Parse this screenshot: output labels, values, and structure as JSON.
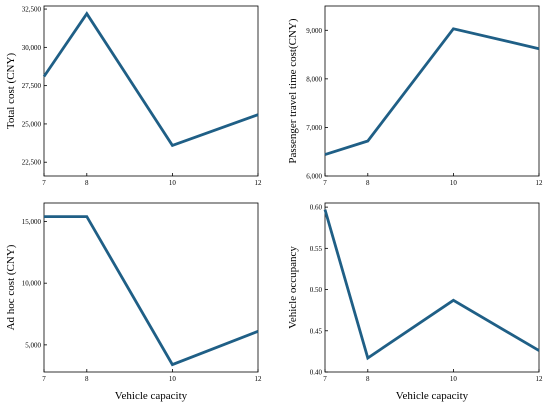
{
  "figure": {
    "line_color": "#1f5f86"
  },
  "chart_data": [
    {
      "type": "line",
      "x": [
        7,
        8,
        10,
        12
      ],
      "y": [
        28100,
        32200,
        23600,
        25600
      ],
      "xlabel": "",
      "ylabel": "Total cost (CNY)",
      "xlim": [
        7,
        12
      ],
      "ylim": [
        21600,
        32700
      ],
      "xticks": [
        7,
        8,
        10,
        12
      ],
      "yticks": [
        22500,
        25000,
        27500,
        30000,
        32500
      ],
      "ytick_labels": [
        "22,500",
        "25,000",
        "27,500",
        "30,000",
        "32,500"
      ],
      "grid": false
    },
    {
      "type": "line",
      "x": [
        7,
        8,
        10,
        12
      ],
      "y": [
        6440,
        6720,
        9030,
        8620
      ],
      "xlabel": "",
      "ylabel": "Passenger travel time cost(CNY)",
      "xlim": [
        7,
        12
      ],
      "ylim": [
        6000,
        9500
      ],
      "xticks": [
        7,
        8,
        10,
        12
      ],
      "yticks": [
        6000,
        7000,
        8000,
        9000
      ],
      "ytick_labels": [
        "6,000",
        "7,000",
        "8,000",
        "9,000"
      ],
      "grid": false
    },
    {
      "type": "line",
      "x": [
        7,
        8,
        10,
        12
      ],
      "y": [
        15400,
        15400,
        3400,
        6100
      ],
      "xlabel": "Vehicle capacity",
      "ylabel": "Ad hoc cost (CNY)",
      "xlim": [
        7,
        12
      ],
      "ylim": [
        2800,
        16500
      ],
      "xticks": [
        7,
        8,
        10,
        12
      ],
      "yticks": [
        5000,
        10000,
        15000
      ],
      "ytick_labels": [
        "5,000",
        "10,000",
        "15,000"
      ],
      "grid": false
    },
    {
      "type": "line",
      "x": [
        7,
        8,
        10,
        12
      ],
      "y": [
        0.597,
        0.417,
        0.487,
        0.426
      ],
      "xlabel": "Vehicle capacity",
      "ylabel": "Vehicle occupancy",
      "xlim": [
        7,
        12
      ],
      "ylim": [
        0.4,
        0.605
      ],
      "xticks": [
        7,
        8,
        10,
        12
      ],
      "yticks": [
        0.4,
        0.45,
        0.5,
        0.55,
        0.6
      ],
      "ytick_labels": [
        "0.40",
        "0.45",
        "0.50",
        "0.55",
        "0.60"
      ],
      "grid": false
    }
  ]
}
